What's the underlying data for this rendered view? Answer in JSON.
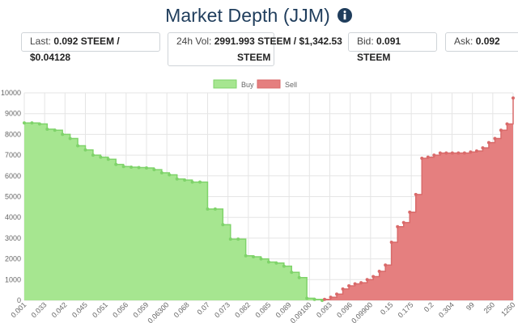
{
  "page": {
    "title": "Market Depth (JJM)",
    "info_icon": "info-circle-icon"
  },
  "stats": {
    "last_label": "Last:",
    "last_value": "0.092 STEEM / $0.04128",
    "vol_label": "24h Vol:",
    "vol_value_line1": "2991.993 STEEM / $1,342.53",
    "vol_value_line2": "STEEM",
    "bid_label": "Bid:",
    "bid_value": "0.091 STEEM",
    "ask_label": "Ask:",
    "ask_value": "0.092"
  },
  "colors": {
    "title": "#1f3d5c",
    "buy_fill": "#a6e690",
    "buy_stroke": "#7fd36a",
    "sell_fill": "#e57f7f",
    "sell_stroke": "#d96a6a",
    "grid": "#e5e5e5"
  },
  "chart_data": {
    "type": "area",
    "legend": [
      "Buy",
      "Sell"
    ],
    "legend_position": "top-center",
    "ylim": [
      0,
      10000
    ],
    "yticks": [
      "0",
      "1000",
      "2000",
      "3000",
      "4000",
      "5000",
      "6000",
      "7000",
      "8000",
      "9000",
      "10000"
    ],
    "xticks": [
      "0.001",
      "0.033",
      "0.042",
      "0.045",
      "0.051",
      "0.056",
      "0.059",
      "0.06300",
      "0.068",
      "0.07",
      "0.073",
      "0.082",
      "0.085",
      "0.089",
      "0.09100",
      "0.093",
      "0.096",
      "0.09900",
      "0.15",
      "0.175",
      "0.2",
      "0.304",
      "99",
      "250",
      "1250"
    ],
    "grid": true,
    "series": [
      {
        "name": "Buy",
        "values": [
          8550,
          8550,
          8500,
          8250,
          8200,
          8000,
          7800,
          7450,
          7250,
          7000,
          6900,
          6800,
          6550,
          6450,
          6420,
          6400,
          6380,
          6300,
          6150,
          6050,
          5850,
          5800,
          5700,
          5700,
          4400,
          4400,
          3650,
          2950,
          2950,
          2150,
          2100,
          2000,
          1850,
          1800,
          1650,
          1350,
          1100,
          100,
          50,
          0
        ]
      },
      {
        "name": "Sell",
        "values": [
          50,
          150,
          300,
          550,
          700,
          800,
          850,
          1000,
          1150,
          1400,
          1700,
          2800,
          3550,
          3750,
          4250,
          5100,
          6850,
          6900,
          7000,
          7100,
          7100,
          7100,
          7100,
          7100,
          7150,
          7200,
          7350,
          7600,
          7800,
          8200,
          8500,
          9750
        ]
      }
    ]
  }
}
